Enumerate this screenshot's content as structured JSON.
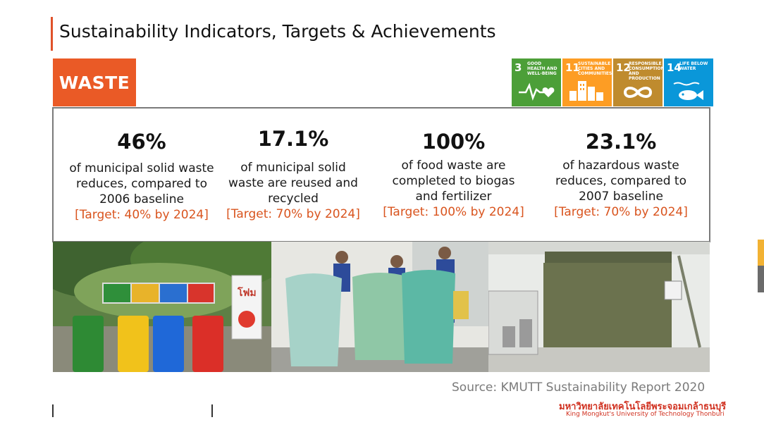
{
  "title": "Sustainability Indicators, Targets & Achievements",
  "badge": "WASTE",
  "sdgs": [
    {
      "number": "3",
      "label": "GOOD HEALTH AND WELL-BEING",
      "color": "#4c9f38",
      "icon": "heartbeat-icon"
    },
    {
      "number": "11",
      "label": "SUSTAINABLE CITIES AND COMMUNITIES",
      "color": "#fd9d24",
      "icon": "city-icon"
    },
    {
      "number": "12",
      "label": "RESPONSIBLE CONSUMPTION AND PRODUCTION",
      "color": "#bf8b2e",
      "icon": "infinity-icon"
    },
    {
      "number": "14",
      "label": "LIFE BELOW WATER",
      "color": "#0a97d9",
      "icon": "fish-icon"
    }
  ],
  "stats": [
    {
      "value": "46%",
      "lines": [
        "of municipal solid waste",
        "reduces, compared to",
        "2006 baseline"
      ],
      "target": "[Target: 40% by 2024]"
    },
    {
      "value": "17.1%",
      "lines": [
        "of municipal solid",
        "waste are reused and",
        "recycled"
      ],
      "target": "[Target: 70% by 2024]"
    },
    {
      "value": "100%",
      "lines": [
        "of food waste are",
        "completed to biogas",
        "and fertilizer"
      ],
      "target": "[Target: 100% by 2024]"
    },
    {
      "value": "23.1%",
      "lines": [
        "of hazardous waste",
        "reduces, compared to",
        "2007 baseline"
      ],
      "target": "[Target: 70% by 2024]"
    }
  ],
  "photos": {
    "sign_text": "โฟม"
  },
  "source": "Source: KMUTT Sustainability Report 2020",
  "footer": {
    "university_th": "มหาวิทยาลัยเทคโนโลยีพระจอมเกล้าธนบุรี",
    "university_en": "King Mongkut's University of Technology Thonburi"
  },
  "colors": {
    "accent": "#ea5a26",
    "target": "#d9541e",
    "rail_yellow": "#f2b233",
    "rail_gray": "#6b6b6b"
  }
}
